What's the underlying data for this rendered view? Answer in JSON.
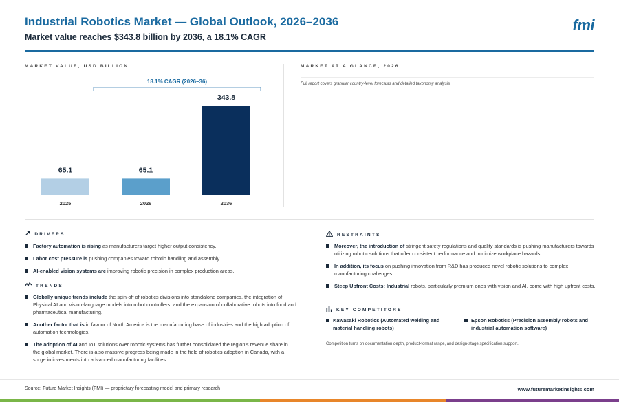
{
  "header": {
    "title": "Industrial Robotics Market — Global Outlook, 2026–2036",
    "subtitle": "Market value reaches $343.8 billion by 2036, a 18.1% CAGR",
    "logo": "fmi"
  },
  "left_section_label": "MARKET VALUE, USD BILLION",
  "glance": {
    "label": "MARKET AT A GLANCE, 2026",
    "note": "Full report covers granular country-level forecasts and detailed taxonomy analysis."
  },
  "chart_data": {
    "type": "bar",
    "title": "",
    "xlabel": "",
    "ylabel": "",
    "categories": [
      "2025",
      "2026",
      "2036"
    ],
    "values": [
      65.1,
      65.1,
      343.8
    ],
    "value_labels": [
      "65.1",
      "65.1",
      "343.8"
    ],
    "bar_colors": [
      "#b3cfe5",
      "#5b9fcb",
      "#0a2f5c"
    ],
    "annotation": "18.1% CAGR (2026–36)",
    "ylim": [
      0,
      343.8
    ],
    "grid": false,
    "legend": "none"
  },
  "drivers": {
    "heading": "DRIVERS",
    "icon": "arrow-up-right-icon",
    "items": [
      {
        "bold": "Factory automation is rising",
        "text": " as manufacturers target higher output consistency."
      },
      {
        "bold": "Labor cost pressure is",
        "text": " pushing companies toward robotic handling and assembly."
      },
      {
        "bold": "AI-enabled vision systems are",
        "text": " improving robotic precision in complex production areas."
      }
    ]
  },
  "trends": {
    "heading": "TRENDS",
    "icon": "trend-line-icon",
    "items": [
      {
        "bold": "Globally unique trends include",
        "text": " the spin-off of robotics divisions into standalone companies, the integration of Physical AI and vision-language models into robot controllers, and the expansion of collaborative robots into food and pharmaceutical manufacturing."
      },
      {
        "bold": "Another factor that is",
        "text": " in favour of North America is the manufacturing base of industries and the high adoption of automation technologies."
      },
      {
        "bold": "The adoption of AI",
        "text": " and IoT solutions over robotic systems has further consolidated the region's revenue share in the global market. There is also massive progress being made in the field of robotics adoption in Canada, with a surge in investments into advanced manufacturing facilities."
      }
    ]
  },
  "restraints": {
    "heading": "RESTRAINTS",
    "icon": "warning-triangle-icon",
    "items": [
      {
        "bold": "Moreover, the introduction of",
        "text": " stringent safety regulations and quality standards is pushing manufacturers towards utilizing robotic solutions that offer consistent performance and minimize workplace hazards."
      },
      {
        "bold": "In addition, its focus",
        "text": " on pushing innovation from R&D has produced novel robotic solutions to complex manufacturing challenges."
      },
      {
        "bold": "Steep Upfront Costs: Industrial",
        "text": " robots, particularly premium ones with vision and AI, come with high upfront costs."
      }
    ]
  },
  "competitors": {
    "heading": "KEY COMPETITORS",
    "icon": "bar-chart-icon",
    "items": [
      "Kawasaki Robotics (Automated welding and material handling robots)",
      "Epson Robotics (Precision assembly robots and industrial automation software)"
    ],
    "note": "Competition turns on documentation depth, product-format range, and design-stage specification support."
  },
  "footer": {
    "source": "Source: Future Market Insights (FMI) — proprietary forecasting model and primary research",
    "url": "www.futuremarketinsights.com",
    "bar_colors": [
      "#7ab648",
      "#e8862a",
      "#7b3f8c"
    ]
  }
}
